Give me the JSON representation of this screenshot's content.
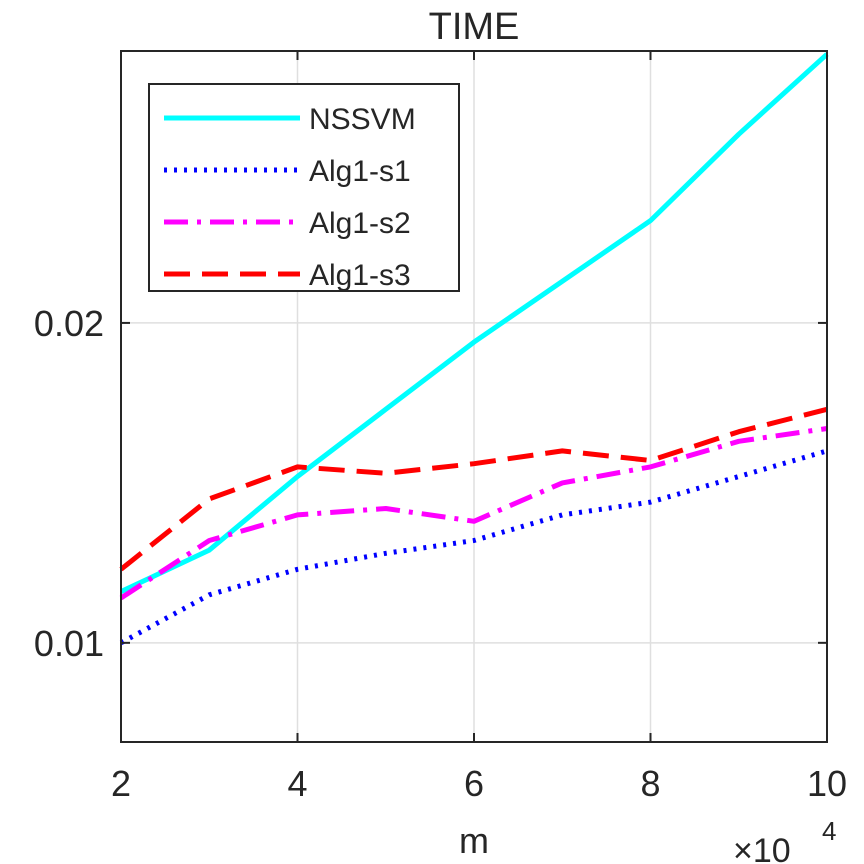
{
  "chart_data": {
    "type": "line",
    "title": "TIME",
    "xlabel": "m",
    "ylabel": "",
    "x_exponent": {
      "times": "×10",
      "power": "4"
    },
    "x": [
      2,
      3,
      4,
      5,
      6,
      7,
      8,
      9,
      10
    ],
    "xlim": [
      2,
      10
    ],
    "ylim": [
      0.0069,
      0.0285
    ],
    "xticks": [
      2,
      4,
      6,
      8,
      10
    ],
    "xtick_labels": [
      "2",
      "4",
      "6",
      "8",
      "10"
    ],
    "yticks": [
      0.01,
      0.02
    ],
    "ytick_labels": [
      "0.01",
      "0.02"
    ],
    "grid": true,
    "legend_position": "top-left",
    "series": [
      {
        "name": "NSSVM",
        "color": "#00ffff",
        "style": "solid",
        "values": [
          0.0116,
          0.0129,
          0.0152,
          0.0173,
          0.0194,
          0.0213,
          0.0232,
          0.0259,
          0.0284
        ]
      },
      {
        "name": "Alg1-s1",
        "color": "#0000ff",
        "style": "dotted",
        "values": [
          0.01,
          0.0115,
          0.0123,
          0.0128,
          0.0132,
          0.014,
          0.0144,
          0.0152,
          0.016
        ]
      },
      {
        "name": "Alg1-s2",
        "color": "#ff00ff",
        "style": "dashdot",
        "values": [
          0.0114,
          0.0132,
          0.014,
          0.0142,
          0.0138,
          0.015,
          0.0155,
          0.0163,
          0.0167
        ]
      },
      {
        "name": "Alg1-s3",
        "color": "#ff0000",
        "style": "dashed",
        "values": [
          0.0123,
          0.0145,
          0.0155,
          0.0153,
          0.0156,
          0.016,
          0.0157,
          0.0166,
          0.0173
        ]
      }
    ]
  }
}
